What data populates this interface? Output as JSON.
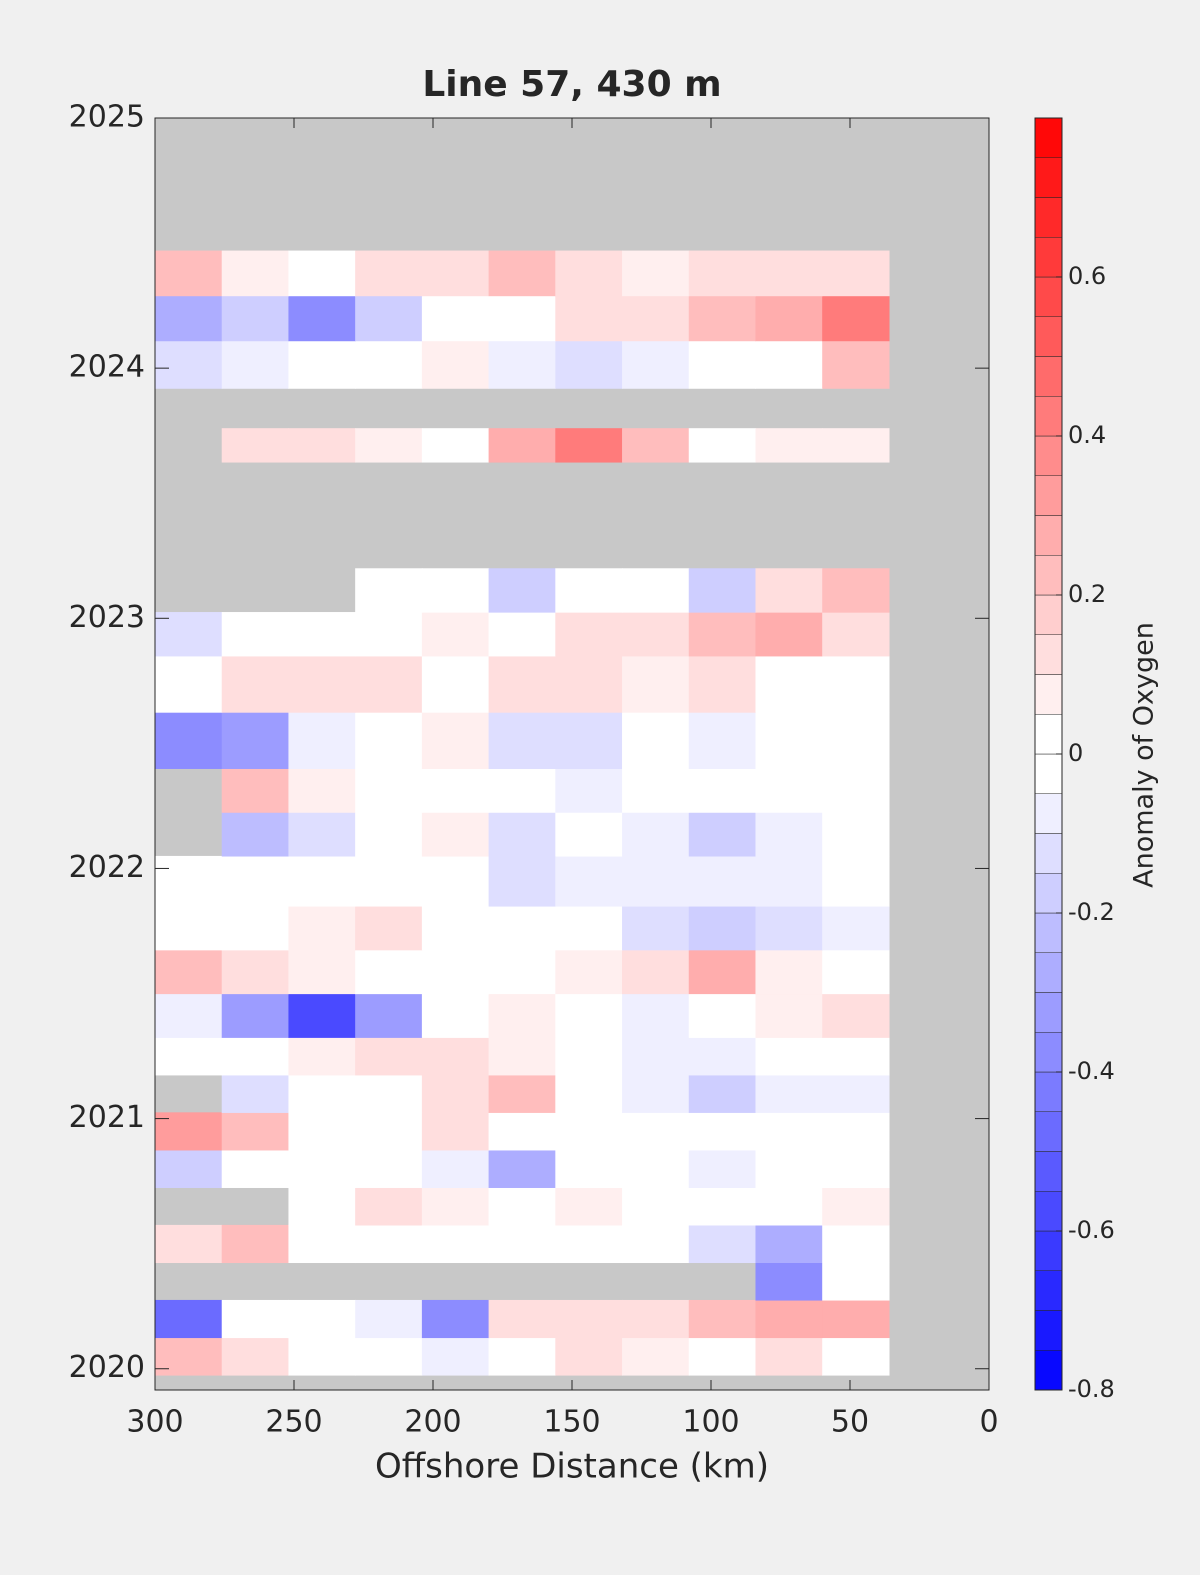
{
  "chart_data": {
    "type": "contour",
    "title": "Line 57, 430 m",
    "xlabel": "Offshore Distance (km)",
    "colorbar_label": "Anomaly of Oxygen",
    "xlim": [
      300,
      0
    ],
    "xticks": [
      300,
      250,
      200,
      150,
      100,
      50,
      0
    ],
    "ylim": [
      2019.915,
      2025
    ],
    "yticks": [
      2020,
      2021,
      2022,
      2023,
      2024,
      2025
    ],
    "clim": [
      -0.8,
      0.8
    ],
    "cticks": [
      -0.8,
      -0.6,
      -0.4,
      -0.2,
      0,
      0.2,
      0.4,
      0.6
    ],
    "level_step": 0.05,
    "missing_color": "#c8c8c8",
    "x": [
      288,
      264,
      240,
      216,
      192,
      168,
      144,
      120,
      96,
      72,
      48
    ],
    "y": [
      2020.05,
      2020.2,
      2020.35,
      2020.5,
      2020.65,
      2020.8,
      2020.95,
      2021.1,
      2021.25,
      2021.4,
      2021.6,
      2021.75,
      2021.95,
      2022.15,
      2022.3,
      2022.5,
      2022.75,
      2022.95,
      2023.1,
      2023.3,
      2023.55,
      2023.7,
      2023.82,
      2024.02,
      2024.2,
      2024.38
    ],
    "z": [
      [
        0.2,
        0.1,
        -0.05,
        0,
        -0.1,
        0,
        0.1,
        0.05,
        0,
        0.1,
        0
      ],
      [
        -0.5,
        0,
        0,
        -0.1,
        -0.4,
        0.1,
        0.15,
        0.1,
        0.2,
        0.3,
        0.3
      ],
      [
        null,
        null,
        null,
        null,
        null,
        null,
        null,
        null,
        null,
        -0.4,
        0
      ],
      [
        0.1,
        0.2,
        0,
        0,
        0,
        0,
        0,
        0,
        -0.15,
        -0.3,
        -0.05
      ],
      [
        null,
        null,
        0,
        0.1,
        0.05,
        0,
        0.05,
        0,
        0,
        0,
        0.05
      ],
      [
        -0.2,
        -0.05,
        0,
        0,
        -0.1,
        -0.3,
        0,
        0,
        -0.1,
        0,
        0
      ],
      [
        0.35,
        0.2,
        0,
        0,
        0.1,
        0,
        0,
        0,
        -0.05,
        0,
        -0.05
      ],
      [
        null,
        -0.15,
        -0.05,
        0,
        0.1,
        0.2,
        0,
        -0.1,
        -0.2,
        -0.1,
        -0.1
      ],
      [
        0,
        0,
        0.05,
        0.15,
        0.15,
        0.05,
        0,
        -0.1,
        -0.1,
        -0.05,
        0
      ],
      [
        -0.1,
        -0.35,
        -0.6,
        -0.35,
        0,
        0.05,
        0,
        -0.1,
        -0.05,
        0.05,
        0.1
      ],
      [
        0.2,
        0.15,
        0.05,
        0,
        0,
        0,
        0.05,
        0.15,
        0.3,
        0.05,
        -0.05
      ],
      [
        -0.05,
        0,
        0.05,
        0.1,
        0,
        0,
        -0.05,
        -0.15,
        -0.2,
        -0.15,
        -0.1
      ],
      [
        0,
        -0.05,
        0,
        0,
        0,
        -0.15,
        -0.1,
        -0.1,
        -0.1,
        -0.1,
        -0.05
      ],
      [
        null,
        -0.25,
        -0.15,
        -0.05,
        0.05,
        -0.15,
        0,
        -0.1,
        -0.2,
        -0.1,
        0
      ],
      [
        null,
        0.2,
        0.05,
        0,
        0,
        -0.05,
        -0.1,
        0,
        0,
        -0.05,
        -0.05
      ],
      [
        -0.4,
        -0.35,
        -0.1,
        -0.05,
        0.05,
        -0.15,
        -0.15,
        0,
        -0.1,
        0,
        0
      ],
      [
        0,
        0.1,
        0.15,
        0.1,
        0,
        0.15,
        0.1,
        0.05,
        0.1,
        0,
        0
      ],
      [
        -0.15,
        0,
        0,
        0,
        0.05,
        0,
        0.1,
        0.1,
        0.2,
        0.25,
        0.15
      ],
      [
        null,
        null,
        null,
        0,
        0,
        -0.2,
        -0.05,
        0,
        -0.2,
        0.1,
        0.2
      ],
      [
        null,
        null,
        null,
        null,
        null,
        null,
        null,
        null,
        null,
        null,
        null
      ],
      [
        null,
        null,
        null,
        null,
        null,
        null,
        null,
        null,
        null,
        null,
        null
      ],
      [
        null,
        0.1,
        0.1,
        0.05,
        0,
        0.3,
        0.4,
        0.2,
        0,
        0.05,
        0.05
      ],
      [
        null,
        null,
        null,
        null,
        null,
        null,
        null,
        null,
        null,
        null,
        null
      ],
      [
        -0.15,
        -0.1,
        0,
        0,
        0.05,
        -0.1,
        -0.15,
        -0.1,
        0,
        -0.05,
        0.2
      ],
      [
        -0.3,
        -0.2,
        -0.4,
        -0.2,
        -0.05,
        0,
        0.1,
        0.15,
        0.2,
        0.3,
        0.4
      ],
      [
        0.2,
        0.05,
        0,
        0.1,
        0.15,
        0.2,
        0.15,
        0.05,
        0.1,
        0.1,
        0.15
      ]
    ]
  }
}
